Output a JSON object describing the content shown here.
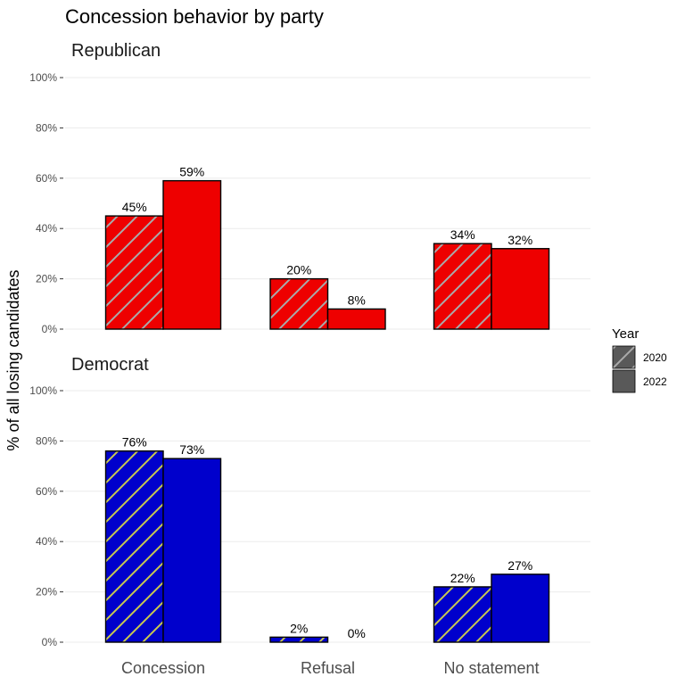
{
  "chart_data": {
    "type": "bar",
    "title": "Concession behavior by party",
    "ylabel": "% of all losing candidates",
    "xlabel": "",
    "categories": [
      "Concession",
      "Refusal",
      "No statement"
    ],
    "ylim": [
      0,
      100
    ],
    "yticks": [
      "0%",
      "20%",
      "40%",
      "60%",
      "80%",
      "100%"
    ],
    "grid": true,
    "legend": {
      "title": "Year",
      "position": "right",
      "entries": [
        "2020",
        "2022"
      ],
      "color": "#595959"
    },
    "facets": [
      {
        "name": "Republican",
        "color": "#ee0000",
        "hatch_color": "#aaaaaa",
        "series": [
          {
            "name": "2020",
            "values": [
              45,
              20,
              34
            ],
            "labels": [
              "45%",
              "20%",
              "34%"
            ]
          },
          {
            "name": "2022",
            "values": [
              59,
              8,
              32
            ],
            "labels": [
              "59%",
              "8%",
              "32%"
            ]
          }
        ]
      },
      {
        "name": "Democrat",
        "color": "#0000cc",
        "hatch_color": "#c8c850",
        "series": [
          {
            "name": "2020",
            "values": [
              76,
              2,
              22
            ],
            "labels": [
              "76%",
              "2%",
              "22%"
            ]
          },
          {
            "name": "2022",
            "values": [
              73,
              0,
              27
            ],
            "labels": [
              "73%",
              "0%",
              "27%"
            ]
          }
        ]
      }
    ]
  }
}
